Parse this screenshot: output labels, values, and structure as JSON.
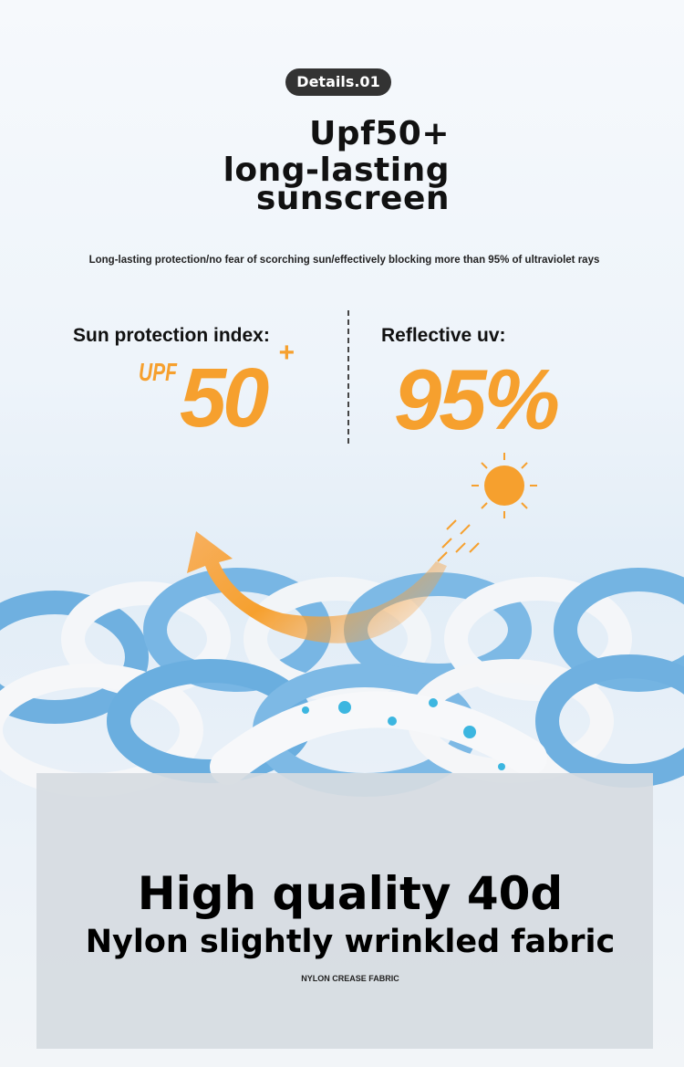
{
  "badge": "Details.01",
  "title": {
    "line1": "Upf50+",
    "line2": "long-lasting",
    "line3": "sunscreen"
  },
  "subtitle": "Long-lasting protection/no fear of scorching sun/effectively blocking more than 95% of ultraviolet rays",
  "left": {
    "label": "Sun protection index:",
    "prefix": "UPF",
    "value": "50",
    "suffix": "+"
  },
  "right": {
    "label": "Reflective uv:",
    "value": "95%"
  },
  "fabric": {
    "headline": "High quality 40d",
    "subheadline": "Nylon slightly wrinkled fabric",
    "caption": "NYLON CREASE FABRIC"
  },
  "colors": {
    "accent": "#f6a02e",
    "badge": "#333333",
    "fabric_blue": "#7fb8e0"
  }
}
